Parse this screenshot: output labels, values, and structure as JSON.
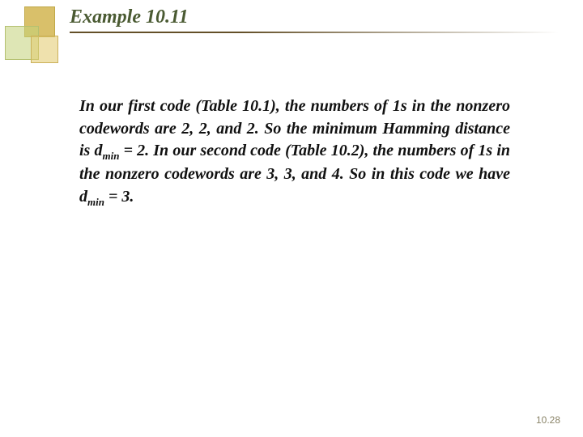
{
  "title": "Example 10.11",
  "body_parts": {
    "p1": "In our first code (Table 10.1), the numbers of 1s in the nonzero codewords are 2, 2, and 2. So the minimum Hamming distance is d",
    "p2": " = 2. In our second code (Table 10.2), the numbers of 1s in the nonzero codewords are 3, 3, and 4. So in this code we have d",
    "p3": " = 3.",
    "sub": "min"
  },
  "page_number": "10.28",
  "colors": {
    "title_color": "#4a5a32",
    "text_color": "#111111",
    "page_num_color": "#8a8468",
    "background": "#ffffff"
  },
  "typography": {
    "title_fontsize": 24,
    "body_fontsize": 20,
    "pagenum_fontsize": 12,
    "style": "italic",
    "weight": "bold",
    "family": "serif"
  }
}
